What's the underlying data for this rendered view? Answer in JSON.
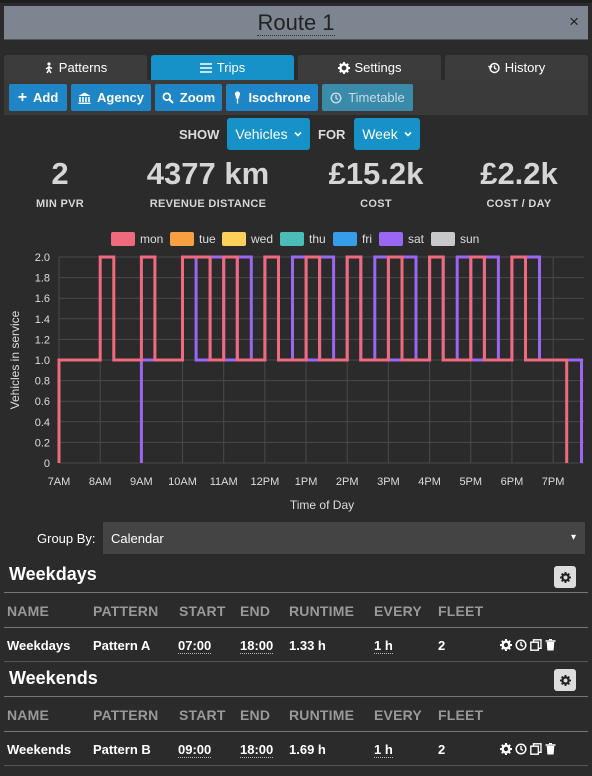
{
  "window": {
    "title": "Route 1",
    "close_glyph": "×"
  },
  "tabs": [
    {
      "label": "Patterns",
      "icon": "person-walk-icon"
    },
    {
      "label": "Trips",
      "icon": "list-icon",
      "active": true
    },
    {
      "label": "Settings",
      "icon": "gear-icon"
    },
    {
      "label": "History",
      "icon": "history-icon"
    }
  ],
  "toolbar": {
    "add": "Add",
    "agency": "Agency",
    "zoom": "Zoom",
    "isochrone": "Isochrone",
    "timetable": "Timetable"
  },
  "filter": {
    "show_label": "SHOW",
    "show_value": "Vehicles",
    "for_label": "FOR",
    "for_value": "Week"
  },
  "stats": [
    {
      "value": "2",
      "label": "MIN PVR"
    },
    {
      "value": "4377 km",
      "label": "REVENUE DISTANCE"
    },
    {
      "value": "£15.2k",
      "label": "COST"
    },
    {
      "value": "£2.2k",
      "label": "COST / DAY"
    }
  ],
  "colors": {
    "accent": "#1692c9",
    "mon": "#f06a7e",
    "tue": "#f7a043",
    "wed": "#fdd05a",
    "thu": "#4bbdb8",
    "fri": "#369ee8",
    "sat": "#9a66f2",
    "sun": "#c8c8c8"
  },
  "chart_data": {
    "type": "line",
    "step": true,
    "xlabel": "Time of Day",
    "ylabel": "Vehicles in service",
    "ylim": [
      0,
      2.0
    ],
    "xlim": [
      7.0,
      19.75
    ],
    "yticks": [
      "0",
      "0.2",
      "0.4",
      "0.6",
      "0.8",
      "1.0",
      "1.2",
      "1.4",
      "1.6",
      "1.8",
      "2.0"
    ],
    "xticks": [
      "7AM",
      "8AM",
      "9AM",
      "10AM",
      "11AM",
      "12PM",
      "1PM",
      "2PM",
      "3PM",
      "4PM",
      "5PM",
      "6PM",
      "7PM"
    ],
    "legend": [
      "mon",
      "tue",
      "wed",
      "thu",
      "fri",
      "sat",
      "sun"
    ],
    "legend_position": "top",
    "grid": true,
    "series": [
      {
        "name": "sat",
        "x": [
          9.0,
          9.0,
          10.0,
          10.0,
          10.33,
          10.33,
          10.67,
          10.67,
          11.0,
          11.0,
          11.33,
          11.33,
          11.67,
          11.67,
          12.0,
          12.0,
          12.33,
          12.33,
          12.67,
          12.67,
          13.0,
          13.0,
          13.33,
          13.33,
          13.67,
          13.67,
          14.0,
          14.0,
          14.33,
          14.33,
          14.67,
          14.67,
          15.0,
          15.0,
          15.33,
          15.33,
          15.67,
          15.67,
          16.0,
          16.0,
          16.33,
          16.33,
          16.67,
          16.67,
          17.0,
          17.0,
          17.33,
          17.33,
          17.67,
          17.67,
          18.0,
          18.0,
          18.67,
          18.67,
          19.69,
          19.69
        ],
        "y": [
          0,
          1,
          1,
          2,
          2,
          1,
          1,
          2,
          2,
          1,
          1,
          2,
          2,
          1,
          1,
          2,
          2,
          1,
          1,
          2,
          2,
          1,
          1,
          2,
          2,
          1,
          1,
          2,
          2,
          1,
          1,
          2,
          2,
          1,
          1,
          2,
          2,
          1,
          1,
          2,
          2,
          1,
          1,
          2,
          2,
          1,
          1,
          2,
          2,
          1,
          1,
          2,
          2,
          1,
          1,
          0
        ]
      },
      {
        "name": "mon",
        "x": [
          7.0,
          7.0,
          8.0,
          8.0,
          8.33,
          8.33,
          9.0,
          9.0,
          9.33,
          9.33,
          10.0,
          10.0,
          10.67,
          10.67,
          11.0,
          11.0,
          11.33,
          11.33,
          12.0,
          12.0,
          12.33,
          12.33,
          13.0,
          13.0,
          13.33,
          13.33,
          14.0,
          14.0,
          14.33,
          14.33,
          15.0,
          15.0,
          15.33,
          15.33,
          16.0,
          16.0,
          16.33,
          16.33,
          17.0,
          17.0,
          17.33,
          17.33,
          18.0,
          18.0,
          18.33,
          18.33,
          19.33,
          19.33
        ],
        "y": [
          0,
          1,
          1,
          2,
          2,
          1,
          1,
          2,
          2,
          1,
          1,
          2,
          2,
          1,
          1,
          2,
          2,
          1,
          1,
          2,
          2,
          1,
          1,
          2,
          2,
          1,
          1,
          2,
          2,
          1,
          1,
          2,
          2,
          1,
          1,
          2,
          2,
          1,
          1,
          2,
          2,
          1,
          1,
          2,
          2,
          1,
          1,
          0
        ]
      }
    ]
  },
  "group_by": {
    "label": "Group By:",
    "value": "Calendar",
    "caret": "▾"
  },
  "columns": [
    "NAME",
    "PATTERN",
    "START",
    "END",
    "RUNTIME",
    "EVERY",
    "FLEET"
  ],
  "groups": [
    {
      "title": "Weekdays",
      "row": {
        "name": "Weekdays",
        "pattern": "Pattern A",
        "start": "07:00",
        "end": "18:00",
        "runtime": "1.33 h",
        "every": "1 h",
        "fleet": "2"
      }
    },
    {
      "title": "Weekends",
      "row": {
        "name": "Weekends",
        "pattern": "Pattern B",
        "start": "09:00",
        "end": "18:00",
        "runtime": "1.69 h",
        "every": "1 h",
        "fleet": "2"
      }
    }
  ]
}
